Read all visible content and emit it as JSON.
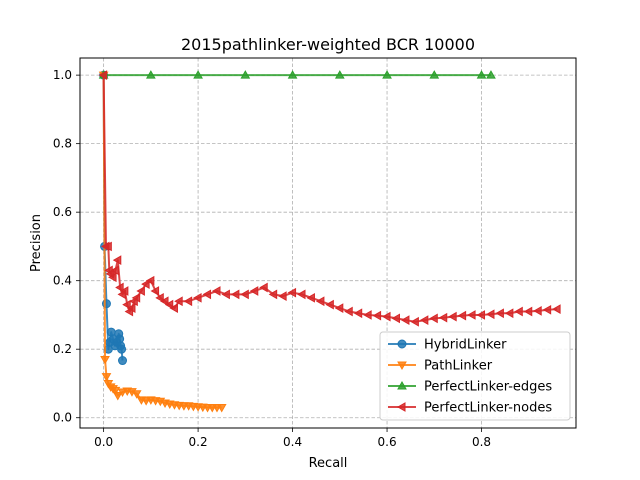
{
  "chart_data": {
    "type": "line",
    "title": "2015pathlinker-weighted BCR 10000",
    "xlabel": "Recall",
    "ylabel": "Precision",
    "xlim": [
      -0.05,
      1.0
    ],
    "ylim": [
      -0.03,
      1.05
    ],
    "xticks": [
      "0.0",
      "0.2",
      "0.4",
      "0.6",
      "0.8"
    ],
    "yticks": [
      "0.0",
      "0.2",
      "0.4",
      "0.6",
      "0.8",
      "1.0"
    ],
    "grid": true,
    "legend_position": "lower-right",
    "series": [
      {
        "name": "HybridLinker",
        "color": "#1f77b4",
        "marker": "circle",
        "points": [
          [
            0.0,
            1.0
          ],
          [
            0.002,
            0.5
          ],
          [
            0.006,
            0.333
          ],
          [
            0.01,
            0.2
          ],
          [
            0.013,
            0.22
          ],
          [
            0.016,
            0.25
          ],
          [
            0.02,
            0.23
          ],
          [
            0.024,
            0.21
          ],
          [
            0.028,
            0.22
          ],
          [
            0.032,
            0.245
          ],
          [
            0.034,
            0.23
          ],
          [
            0.036,
            0.21
          ],
          [
            0.038,
            0.2
          ],
          [
            0.04,
            0.167
          ]
        ]
      },
      {
        "name": "PathLinker",
        "color": "#ff7f0e",
        "marker": "triangle-down",
        "points": [
          [
            0.0,
            1.0
          ],
          [
            0.003,
            0.17
          ],
          [
            0.006,
            0.12
          ],
          [
            0.01,
            0.1
          ],
          [
            0.015,
            0.09
          ],
          [
            0.02,
            0.085
          ],
          [
            0.025,
            0.08
          ],
          [
            0.03,
            0.065
          ],
          [
            0.04,
            0.075
          ],
          [
            0.05,
            0.078
          ],
          [
            0.06,
            0.076
          ],
          [
            0.07,
            0.07
          ],
          [
            0.08,
            0.052
          ],
          [
            0.09,
            0.05
          ],
          [
            0.1,
            0.052
          ],
          [
            0.11,
            0.05
          ],
          [
            0.12,
            0.048
          ],
          [
            0.13,
            0.043
          ],
          [
            0.14,
            0.04
          ],
          [
            0.15,
            0.038
          ],
          [
            0.16,
            0.036
          ],
          [
            0.17,
            0.035
          ],
          [
            0.18,
            0.035
          ],
          [
            0.19,
            0.033
          ],
          [
            0.2,
            0.032
          ],
          [
            0.21,
            0.031
          ],
          [
            0.22,
            0.03
          ],
          [
            0.23,
            0.03
          ],
          [
            0.24,
            0.03
          ],
          [
            0.25,
            0.03
          ]
        ]
      },
      {
        "name": "PerfectLinker-edges",
        "color": "#2ca02c",
        "marker": "triangle-up",
        "points": [
          [
            0.0,
            1.0
          ],
          [
            0.1,
            1.0
          ],
          [
            0.2,
            1.0
          ],
          [
            0.3,
            1.0
          ],
          [
            0.4,
            1.0
          ],
          [
            0.5,
            1.0
          ],
          [
            0.6,
            1.0
          ],
          [
            0.7,
            1.0
          ],
          [
            0.8,
            1.0
          ],
          [
            0.82,
            1.0
          ]
        ]
      },
      {
        "name": "PerfectLinker-nodes",
        "color": "#d62728",
        "marker": "triangle-left",
        "points": [
          [
            0.0,
            1.0
          ],
          [
            0.005,
            0.5
          ],
          [
            0.01,
            0.5
          ],
          [
            0.012,
            0.43
          ],
          [
            0.015,
            0.42
          ],
          [
            0.02,
            0.41
          ],
          [
            0.025,
            0.43
          ],
          [
            0.03,
            0.46
          ],
          [
            0.035,
            0.38
          ],
          [
            0.04,
            0.36
          ],
          [
            0.045,
            0.37
          ],
          [
            0.05,
            0.33
          ],
          [
            0.055,
            0.31
          ],
          [
            0.06,
            0.32
          ],
          [
            0.065,
            0.34
          ],
          [
            0.07,
            0.35
          ],
          [
            0.08,
            0.37
          ],
          [
            0.09,
            0.39
          ],
          [
            0.1,
            0.4
          ],
          [
            0.11,
            0.37
          ],
          [
            0.12,
            0.35
          ],
          [
            0.13,
            0.34
          ],
          [
            0.14,
            0.33
          ],
          [
            0.15,
            0.32
          ],
          [
            0.16,
            0.34
          ],
          [
            0.18,
            0.34
          ],
          [
            0.2,
            0.35
          ],
          [
            0.22,
            0.36
          ],
          [
            0.24,
            0.37
          ],
          [
            0.26,
            0.36
          ],
          [
            0.28,
            0.36
          ],
          [
            0.3,
            0.36
          ],
          [
            0.32,
            0.37
          ],
          [
            0.34,
            0.38
          ],
          [
            0.36,
            0.36
          ],
          [
            0.38,
            0.355
          ],
          [
            0.4,
            0.365
          ],
          [
            0.42,
            0.36
          ],
          [
            0.44,
            0.35
          ],
          [
            0.46,
            0.34
          ],
          [
            0.48,
            0.33
          ],
          [
            0.5,
            0.32
          ],
          [
            0.52,
            0.31
          ],
          [
            0.54,
            0.305
          ],
          [
            0.56,
            0.3
          ],
          [
            0.58,
            0.298
          ],
          [
            0.6,
            0.295
          ],
          [
            0.62,
            0.29
          ],
          [
            0.64,
            0.285
          ],
          [
            0.66,
            0.28
          ],
          [
            0.68,
            0.285
          ],
          [
            0.7,
            0.29
          ],
          [
            0.72,
            0.292
          ],
          [
            0.74,
            0.295
          ],
          [
            0.76,
            0.298
          ],
          [
            0.78,
            0.3
          ],
          [
            0.8,
            0.3
          ],
          [
            0.82,
            0.302
          ],
          [
            0.84,
            0.305
          ],
          [
            0.86,
            0.305
          ],
          [
            0.88,
            0.31
          ],
          [
            0.9,
            0.31
          ],
          [
            0.92,
            0.312
          ],
          [
            0.94,
            0.315
          ],
          [
            0.96,
            0.317
          ]
        ]
      }
    ]
  }
}
